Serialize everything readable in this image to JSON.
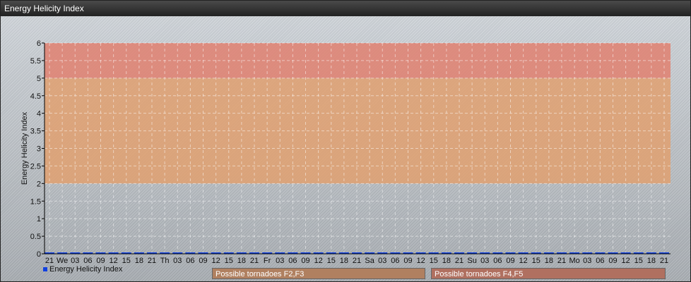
{
  "title": "Energy Helicity Index",
  "chart_data": {
    "type": "bar",
    "title": "Energy Helicity Index",
    "ylabel": "Energy Helicity Index",
    "xlabel": "",
    "ylim": [
      0,
      6
    ],
    "yticks": [
      "0",
      "0.5",
      "1",
      "1.5",
      "2",
      "2.5",
      "3",
      "3.5",
      "4",
      "4.5",
      "5",
      "5.5",
      "6"
    ],
    "grid": true,
    "categories": [
      "21",
      "We",
      "03",
      "06",
      "09",
      "12",
      "15",
      "18",
      "21",
      "Th",
      "03",
      "06",
      "09",
      "12",
      "15",
      "18",
      "21",
      "Fr",
      "03",
      "06",
      "09",
      "12",
      "15",
      "18",
      "21",
      "Sa",
      "03",
      "06",
      "09",
      "12",
      "15",
      "18",
      "21",
      "Su",
      "03",
      "06",
      "09",
      "12",
      "15",
      "18",
      "21",
      "Mo",
      "03",
      "06",
      "09",
      "12",
      "15",
      "18",
      "21"
    ],
    "series": [
      {
        "name": "Energy Helicity Index",
        "color": "#1040e0",
        "values": [
          0,
          0,
          0,
          0,
          0,
          0,
          0,
          0,
          0,
          0,
          0,
          0,
          0,
          0,
          0,
          0,
          0,
          0,
          0,
          0,
          0,
          0,
          0,
          0,
          0,
          0,
          0,
          0,
          0,
          0,
          0,
          0,
          0,
          0,
          0,
          0,
          0,
          0,
          0,
          0,
          0,
          0,
          0,
          0,
          0,
          0,
          0,
          0,
          0
        ]
      }
    ],
    "bands": [
      {
        "label": "Possible tornadoes F2,F3",
        "from": 2,
        "to": 5,
        "color": "#e0a070",
        "legend_color": "#b08060"
      },
      {
        "label": "Possible tornadoes F4,F5",
        "from": 5,
        "to": 6,
        "color": "#e08070",
        "legend_color": "#b07060"
      }
    ],
    "legend_position": "bottom-left"
  }
}
